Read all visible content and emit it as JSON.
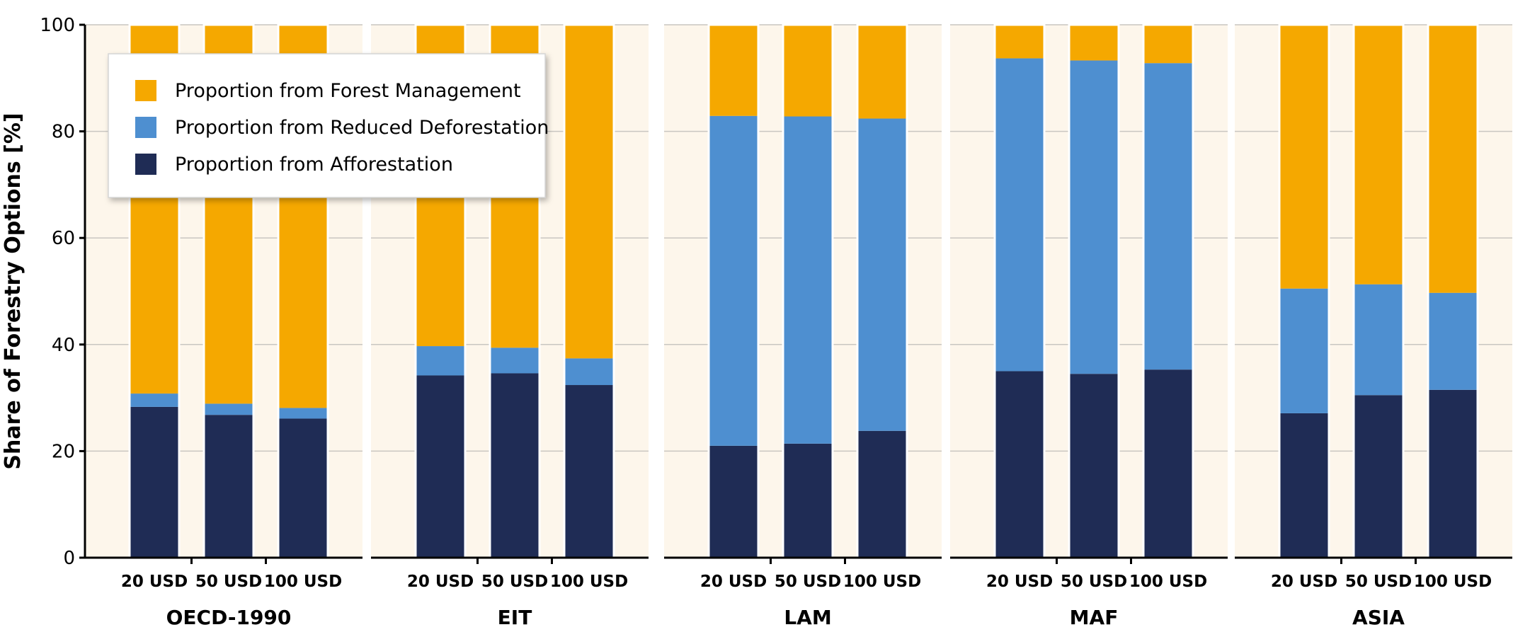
{
  "chart_data": {
    "type": "bar",
    "stacked": true,
    "ylabel": "Share of Forestry Options [%]",
    "ylim": [
      0,
      100
    ],
    "yticks": [
      0,
      20,
      40,
      60,
      80,
      100
    ],
    "grid": true,
    "legend_position": "top-left",
    "groups": [
      {
        "name": "OECD-1990",
        "categories": [
          "20 USD",
          "50 USD",
          "100 USD"
        ],
        "series": [
          {
            "name": "Proportion from Afforestation",
            "values": [
              28.3,
              26.8,
              26.1
            ]
          },
          {
            "name": "Proportion from Reduced Deforestation",
            "values": [
              2.5,
              2.1,
              2.0
            ]
          },
          {
            "name": "Proportion from Forest Management",
            "values": [
              69.2,
              71.1,
              71.9
            ]
          }
        ]
      },
      {
        "name": "EIT",
        "categories": [
          "20 USD",
          "50 USD",
          "100 USD"
        ],
        "series": [
          {
            "name": "Proportion from Afforestation",
            "values": [
              34.2,
              34.6,
              32.4
            ]
          },
          {
            "name": "Proportion from Reduced Deforestation",
            "values": [
              5.5,
              4.8,
              5.0
            ]
          },
          {
            "name": "Proportion from Forest Management",
            "values": [
              60.3,
              60.6,
              62.6
            ]
          }
        ]
      },
      {
        "name": "LAM",
        "categories": [
          "20 USD",
          "50 USD",
          "100 USD"
        ],
        "series": [
          {
            "name": "Proportion from Afforestation",
            "values": [
              21.0,
              21.4,
              23.8
            ]
          },
          {
            "name": "Proportion from Reduced Deforestation",
            "values": [
              61.9,
              61.4,
              58.6
            ]
          },
          {
            "name": "Proportion from Forest Management",
            "values": [
              17.1,
              17.2,
              17.6
            ]
          }
        ]
      },
      {
        "name": "MAF",
        "categories": [
          "20 USD",
          "50 USD",
          "100 USD"
        ],
        "series": [
          {
            "name": "Proportion from Afforestation",
            "values": [
              35.0,
              34.5,
              35.3
            ]
          },
          {
            "name": "Proportion from Reduced Deforestation",
            "values": [
              58.7,
              58.8,
              57.5
            ]
          },
          {
            "name": "Proportion from Forest Management",
            "values": [
              6.3,
              6.7,
              7.2
            ]
          }
        ]
      },
      {
        "name": "ASIA",
        "categories": [
          "20 USD",
          "50 USD",
          "100 USD"
        ],
        "series": [
          {
            "name": "Proportion from Afforestation",
            "values": [
              27.1,
              30.5,
              31.5
            ]
          },
          {
            "name": "Proportion from Reduced Deforestation",
            "values": [
              23.4,
              20.8,
              18.2
            ]
          },
          {
            "name": "Proportion from Forest Management",
            "values": [
              49.5,
              48.7,
              50.3
            ]
          }
        ]
      }
    ],
    "legend": [
      {
        "label": "Proportion from Forest Management",
        "color": "#F5A800"
      },
      {
        "label": "Proportion from Reduced Deforestation",
        "color": "#4E8FD0"
      },
      {
        "label": "Proportion from Afforestation",
        "color": "#1F2C55"
      }
    ],
    "colors": {
      "Proportion from Afforestation": "#1F2C55",
      "Proportion from Reduced Deforestation": "#4E8FD0",
      "Proportion from Forest Management": "#F5A800",
      "panel_background": "#FDF6EB",
      "gridline": "#C9C6C1"
    }
  }
}
